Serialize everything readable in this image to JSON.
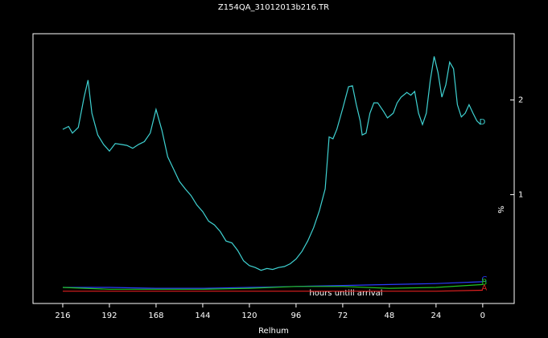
{
  "chart_data": {
    "type": "line",
    "title": "Z154QA_31012013b216.TR",
    "x_label": "Relhum",
    "y_label": "%",
    "annotation": "hours untill arrival",
    "xlim": [
      231.3,
      -16.2
    ],
    "xticks": [
      216,
      192,
      168,
      144,
      120,
      96,
      72,
      48,
      24,
      0
    ],
    "ylim": [
      -0.15,
      2.7
    ],
    "yticks": [
      1,
      2
    ],
    "series": [
      {
        "name": "D",
        "color": "#3fd2d2",
        "x": [
          216,
          213,
          211,
          208,
          205,
          203,
          201,
          198,
          195,
          192,
          189,
          186,
          183,
          180,
          177,
          174,
          171,
          168,
          165,
          162,
          159,
          156,
          153,
          150,
          147,
          144,
          141,
          138,
          135,
          132,
          129,
          126,
          123,
          120,
          117,
          114,
          111,
          108,
          105,
          102,
          99,
          96,
          93,
          90,
          87,
          84,
          81,
          79,
          77,
          75,
          72,
          69,
          67,
          65,
          63,
          62,
          60,
          58,
          56,
          54,
          51,
          49,
          46,
          44,
          42,
          39,
          37,
          35,
          33,
          31,
          29,
          27,
          25,
          23,
          21,
          19,
          17,
          15,
          13,
          11,
          9,
          7,
          5,
          3,
          1
        ],
        "values": [
          1.69,
          1.72,
          1.65,
          1.71,
          2.03,
          2.21,
          1.86,
          1.63,
          1.53,
          1.46,
          1.54,
          1.53,
          1.52,
          1.49,
          1.53,
          1.56,
          1.65,
          1.9,
          1.68,
          1.4,
          1.27,
          1.14,
          1.06,
          0.99,
          0.89,
          0.82,
          0.72,
          0.68,
          0.61,
          0.51,
          0.49,
          0.41,
          0.3,
          0.25,
          0.23,
          0.2,
          0.22,
          0.21,
          0.23,
          0.24,
          0.27,
          0.32,
          0.4,
          0.51,
          0.65,
          0.83,
          1.06,
          1.61,
          1.59,
          1.69,
          1.91,
          2.14,
          2.15,
          1.95,
          1.78,
          1.63,
          1.65,
          1.86,
          1.97,
          1.97,
          1.88,
          1.81,
          1.86,
          1.97,
          2.03,
          2.08,
          2.05,
          2.09,
          1.86,
          1.74,
          1.86,
          2.2,
          2.46,
          2.29,
          2.03,
          2.16,
          2.4,
          2.33,
          1.95,
          1.82,
          1.86,
          1.95,
          1.86,
          1.78,
          1.74
        ]
      },
      {
        "name": "C",
        "color": "#2a3cff",
        "x": [
          216,
          192,
          168,
          144,
          120,
          96,
          72,
          48,
          24,
          0
        ],
        "values": [
          0.02,
          0.02,
          0.01,
          0.01,
          0.02,
          0.03,
          0.04,
          0.05,
          0.06,
          0.08
        ]
      },
      {
        "name": "B",
        "color": "#22c422",
        "x": [
          216,
          192,
          168,
          144,
          120,
          96,
          72,
          48,
          24,
          0
        ],
        "values": [
          0.02,
          0.0,
          0.0,
          0.0,
          0.01,
          0.03,
          0.03,
          0.01,
          0.02,
          0.05
        ]
      },
      {
        "name": "A",
        "color": "#e02020",
        "x": [
          216,
          192,
          168,
          144,
          120,
          96,
          72,
          48,
          24,
          0
        ],
        "values": [
          -0.02,
          -0.02,
          -0.02,
          -0.02,
          -0.02,
          -0.02,
          -0.02,
          -0.02,
          -0.02,
          -0.01
        ]
      }
    ]
  }
}
